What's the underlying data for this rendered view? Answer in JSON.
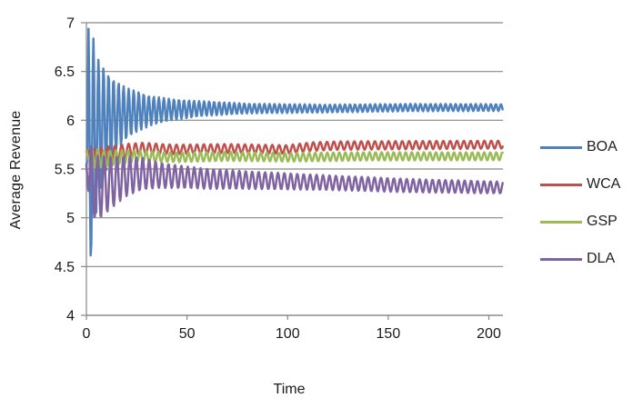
{
  "chart_data": {
    "type": "line",
    "title": "",
    "xlabel": "Time",
    "ylabel": "Average Revenue",
    "xlim": [
      0,
      200
    ],
    "ylim": [
      4,
      7
    ],
    "x_ticks": [
      0,
      50,
      100,
      150,
      200
    ],
    "y_ticks": [
      4,
      4.5,
      5,
      5.5,
      6,
      6.5,
      7
    ],
    "grid": "horizontal-only",
    "legend_position": "right-center",
    "background_color": "#ffffff",
    "axis_color": "#878787",
    "text_color": "#1a1a1a",
    "x_data_extent": 207,
    "sample_step": 0.35,
    "description": "Four series oscillate with a high-frequency ripple whose amplitude decays over time; each converges to a steady average revenue level.",
    "series": [
      {
        "name": "BOA",
        "color": "#4F81BD",
        "converges_to": 6.13,
        "initial_high": 6.85,
        "initial_low": 4.4,
        "ripple_period": 2.5,
        "ripple_phase": -0.94,
        "mean_keyframes": [
          [
            0,
            5.6
          ],
          [
            1,
            5.65
          ],
          [
            3,
            5.78
          ],
          [
            6,
            5.9
          ],
          [
            10,
            6.0
          ],
          [
            15,
            6.04
          ],
          [
            20,
            6.07
          ],
          [
            26,
            6.09
          ],
          [
            34,
            6.1
          ],
          [
            45,
            6.11
          ],
          [
            60,
            6.12
          ],
          [
            120,
            6.12
          ],
          [
            160,
            6.13
          ],
          [
            207,
            6.13
          ]
        ],
        "amplitude_keyframes": [
          [
            0,
            0.1
          ],
          [
            1,
            1.3
          ],
          [
            3,
            1.1
          ],
          [
            6,
            0.72
          ],
          [
            10,
            0.5
          ],
          [
            15,
            0.36
          ],
          [
            20,
            0.26
          ],
          [
            26,
            0.2
          ],
          [
            32,
            0.15
          ],
          [
            42,
            0.11
          ],
          [
            55,
            0.08
          ],
          [
            80,
            0.05
          ],
          [
            120,
            0.04
          ],
          [
            207,
            0.035
          ]
        ]
      },
      {
        "name": "WCA",
        "color": "#C0504D",
        "converges_to": 5.75,
        "initial_high": 5.75,
        "initial_low": 5.45,
        "ripple_period": 3.4,
        "ripple_phase": 0.5,
        "mean_keyframes": [
          [
            0,
            5.66
          ],
          [
            2,
            5.62
          ],
          [
            6,
            5.61
          ],
          [
            12,
            5.65
          ],
          [
            20,
            5.69
          ],
          [
            28,
            5.71
          ],
          [
            45,
            5.7
          ],
          [
            70,
            5.71
          ],
          [
            100,
            5.7
          ],
          [
            112,
            5.73
          ],
          [
            125,
            5.74
          ],
          [
            207,
            5.75
          ]
        ],
        "amplitude_keyframes": [
          [
            0,
            0.03
          ],
          [
            3,
            0.09
          ],
          [
            8,
            0.1
          ],
          [
            14,
            0.08
          ],
          [
            22,
            0.065
          ],
          [
            40,
            0.05
          ],
          [
            80,
            0.045
          ],
          [
            207,
            0.04
          ]
        ]
      },
      {
        "name": "GSP",
        "color": "#9BBB59",
        "converges_to": 5.63,
        "initial_high": 5.7,
        "initial_low": 5.5,
        "ripple_period": 3.0,
        "ripple_phase": 2.2,
        "mean_keyframes": [
          [
            0,
            5.66
          ],
          [
            3,
            5.62
          ],
          [
            8,
            5.6
          ],
          [
            15,
            5.62
          ],
          [
            25,
            5.63
          ],
          [
            45,
            5.62
          ],
          [
            70,
            5.63
          ],
          [
            100,
            5.62
          ],
          [
            140,
            5.63
          ],
          [
            207,
            5.63
          ]
        ],
        "amplitude_keyframes": [
          [
            0,
            0.04
          ],
          [
            4,
            0.1
          ],
          [
            10,
            0.08
          ],
          [
            20,
            0.065
          ],
          [
            40,
            0.05
          ],
          [
            80,
            0.045
          ],
          [
            207,
            0.04
          ]
        ]
      },
      {
        "name": "DLA",
        "color": "#8064A2",
        "converges_to": 5.3,
        "initial_high": 5.65,
        "initial_low": 4.95,
        "ripple_period": 3.2,
        "ripple_phase": 3.14,
        "mean_keyframes": [
          [
            0,
            5.55
          ],
          [
            2,
            5.4
          ],
          [
            5,
            5.3
          ],
          [
            9,
            5.33
          ],
          [
            14,
            5.38
          ],
          [
            20,
            5.43
          ],
          [
            28,
            5.45
          ],
          [
            40,
            5.43
          ],
          [
            60,
            5.4
          ],
          [
            90,
            5.38
          ],
          [
            120,
            5.36
          ],
          [
            160,
            5.33
          ],
          [
            207,
            5.31
          ]
        ],
        "amplitude_keyframes": [
          [
            0,
            0.08
          ],
          [
            2,
            0.35
          ],
          [
            6,
            0.33
          ],
          [
            12,
            0.27
          ],
          [
            18,
            0.22
          ],
          [
            26,
            0.17
          ],
          [
            36,
            0.13
          ],
          [
            50,
            0.11
          ],
          [
            80,
            0.09
          ],
          [
            120,
            0.075
          ],
          [
            207,
            0.06
          ]
        ]
      }
    ]
  }
}
